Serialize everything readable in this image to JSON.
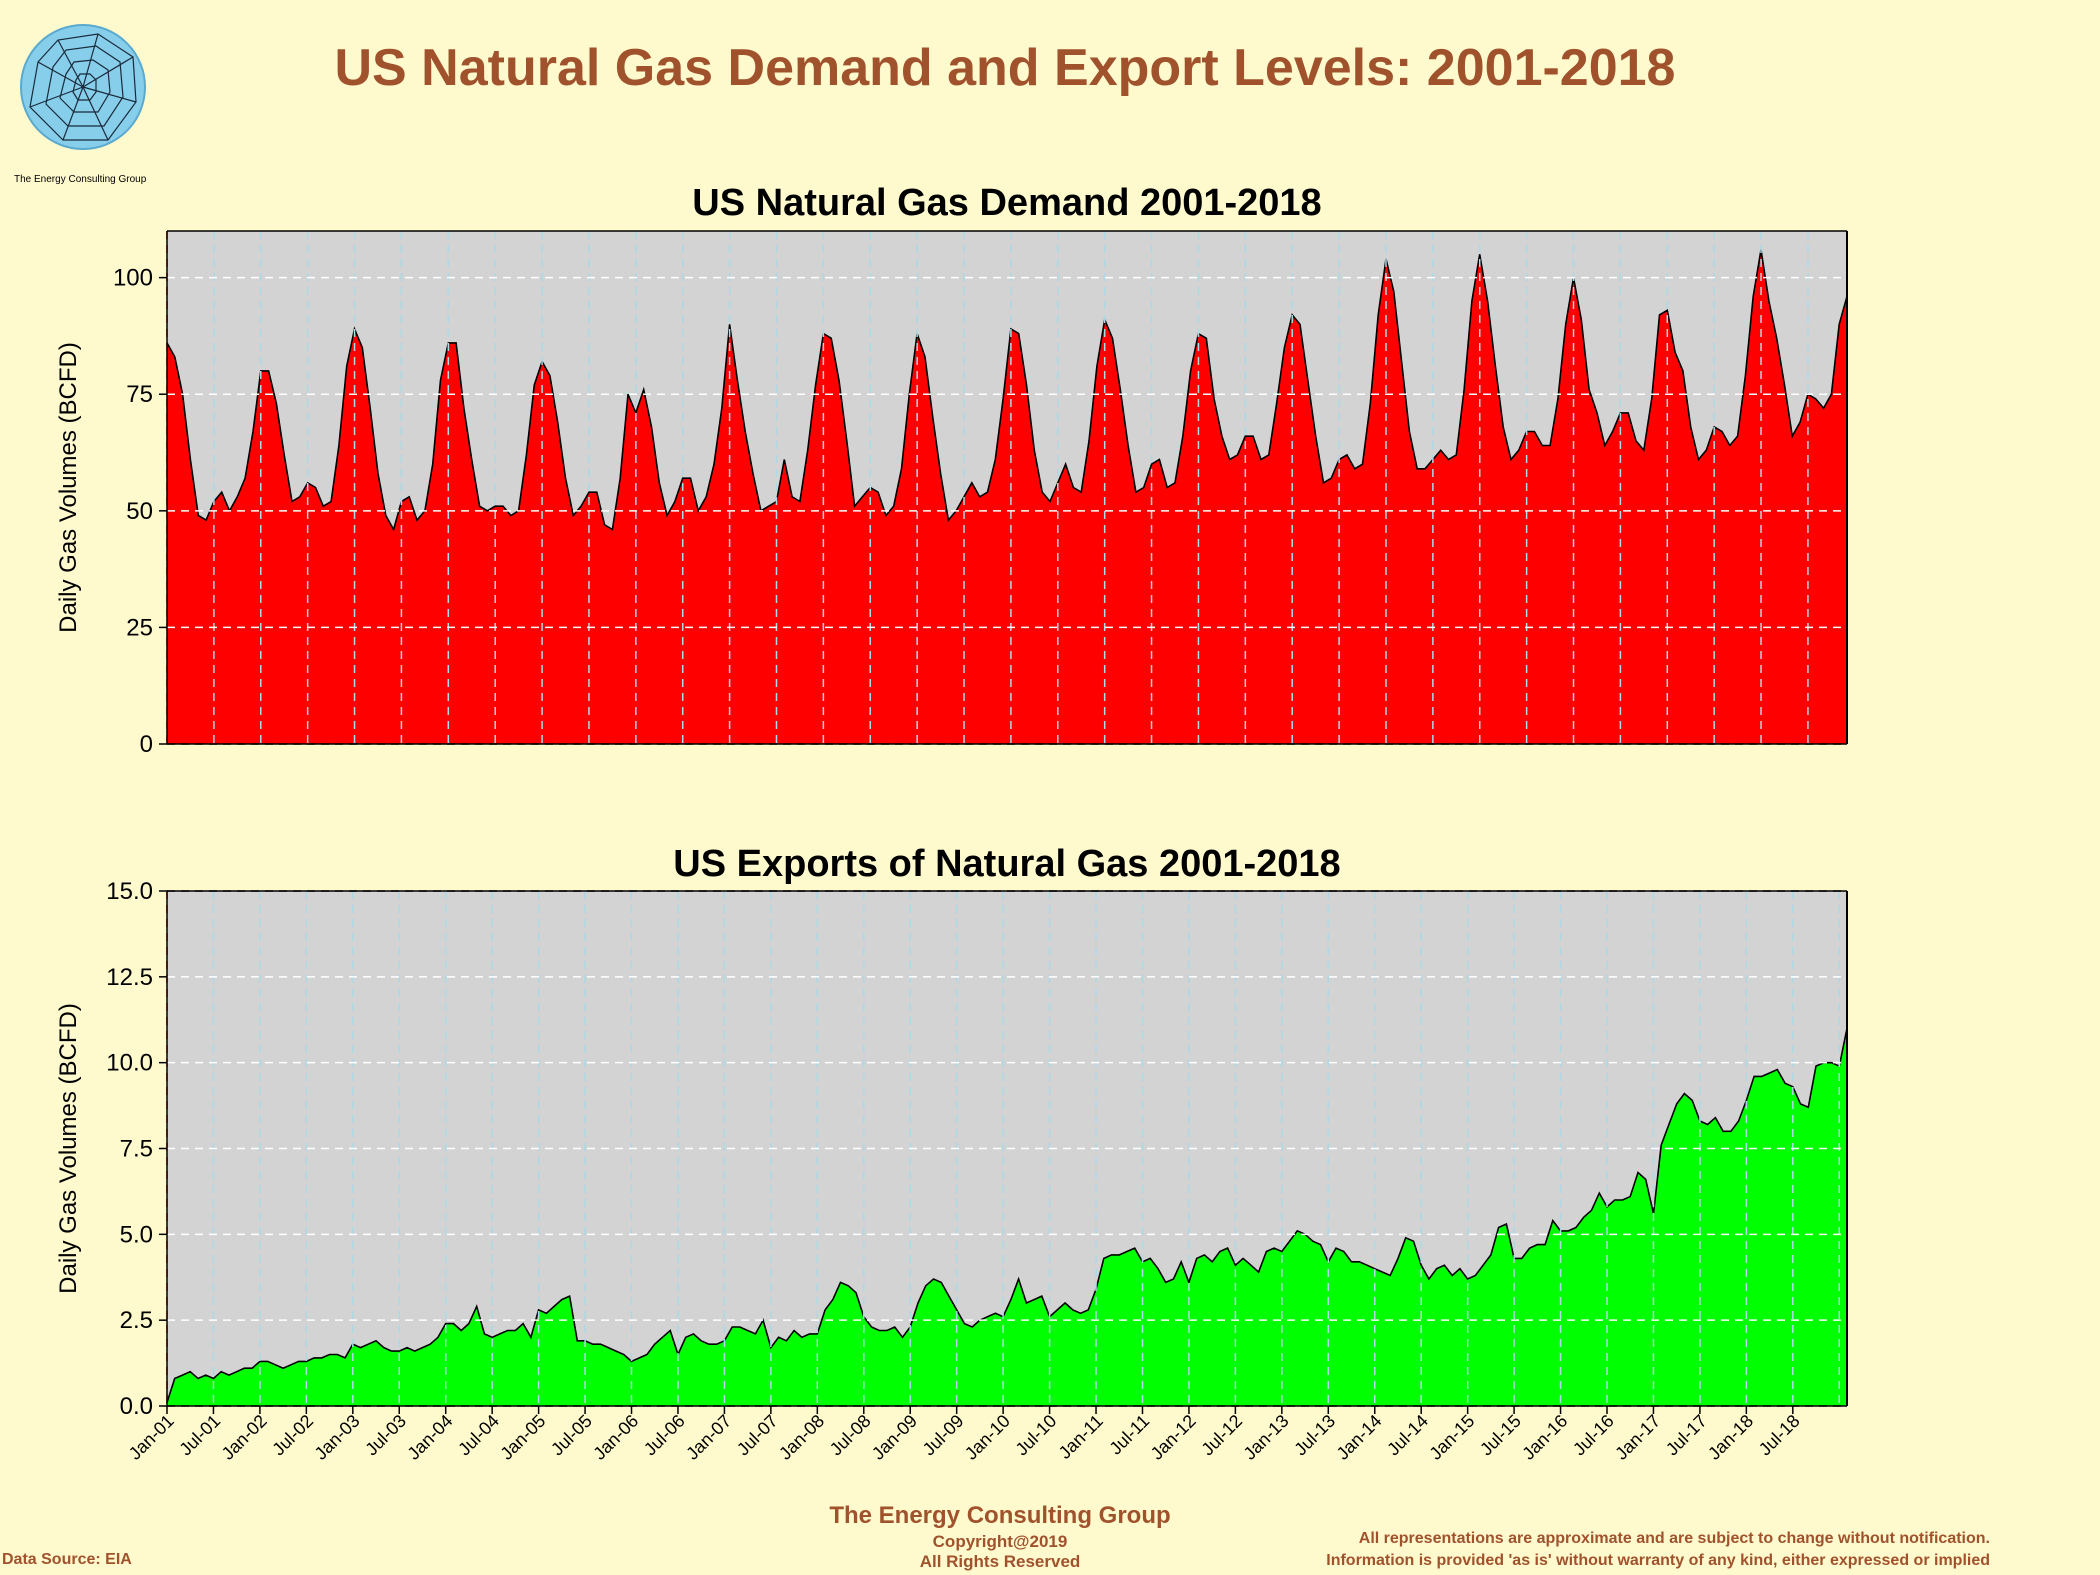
{
  "page": {
    "title": "US Natural Gas Demand and Export Levels: 2001-2018",
    "logo_text": "The Energy Consulting Group",
    "footer_company": "The Energy Consulting Group",
    "footer_copyright": "Copyright@2019",
    "footer_rights": "All Rights Reserved",
    "data_source": "Data Source: EIA",
    "disclaimer_1": "All representations are approximate and are subject to change without notification.",
    "disclaimer_2": "Information is provided 'as is' without warranty of any kind, either expressed or implied",
    "colors": {
      "title": "#A0522D",
      "background": "#FFFACD",
      "plot_bg": "#D3D3D3",
      "grid": "#ADD8E6"
    }
  },
  "chart_data": [
    {
      "type": "area",
      "title": "US Natural Gas Demand 2001-2018",
      "ylabel": "Daily Gas Volumes (BCFD)",
      "xlabel": "",
      "ylim": [
        0,
        110
      ],
      "yticks": [
        "0",
        "25",
        "50",
        "75",
        "100"
      ],
      "ytick_values": [
        0,
        25,
        50,
        75,
        100
      ],
      "x_start": "Jan-01",
      "x_end": "Dec-18",
      "frequency": "monthly",
      "fill_color": "#FF0000",
      "grid": true,
      "values": [
        86,
        83,
        75,
        61,
        49,
        48,
        52,
        54,
        50,
        53,
        57,
        67,
        80,
        80,
        73,
        62,
        52,
        53,
        56,
        55,
        51,
        52,
        64,
        81,
        89,
        85,
        72,
        58,
        49,
        46,
        52,
        53,
        48,
        50,
        60,
        78,
        86,
        86,
        72,
        61,
        51,
        50,
        51,
        51,
        49,
        50,
        62,
        77,
        82,
        79,
        69,
        57,
        49,
        51,
        54,
        54,
        47,
        46,
        57,
        75,
        71,
        76,
        68,
        56,
        49,
        52,
        57,
        57,
        50,
        53,
        60,
        72,
        90,
        78,
        67,
        58,
        50,
        51,
        52,
        61,
        53,
        52,
        63,
        77,
        88,
        87,
        78,
        65,
        51,
        53,
        55,
        54,
        49,
        51,
        59,
        75,
        88,
        83,
        70,
        58,
        48,
        50,
        53,
        56,
        53,
        54,
        61,
        74,
        89,
        88,
        77,
        63,
        54,
        52,
        56,
        60,
        55,
        54,
        65,
        81,
        91,
        87,
        76,
        64,
        54,
        55,
        60,
        61,
        55,
        56,
        66,
        80,
        88,
        87,
        74,
        66,
        61,
        62,
        66,
        66,
        61,
        62,
        73,
        85,
        92,
        90,
        78,
        66,
        56,
        57,
        61,
        62,
        59,
        60,
        73,
        92,
        104,
        97,
        82,
        67,
        59,
        59,
        61,
        63,
        61,
        62,
        76,
        95,
        105,
        95,
        81,
        68,
        61,
        63,
        67,
        67,
        64,
        64,
        74,
        90,
        100,
        91,
        76,
        71,
        64,
        67,
        71,
        71,
        65,
        63,
        74,
        92,
        93,
        84,
        80,
        68,
        61,
        63,
        68,
        67,
        64,
        66,
        79,
        96,
        106,
        95,
        87,
        77,
        66,
        69,
        75,
        74,
        72,
        75,
        90,
        96
      ]
    },
    {
      "type": "area",
      "title": "US Exports of Natural Gas 2001-2018",
      "ylabel": "Daily Gas Volumes (BCFD)",
      "xlabel": "",
      "ylim": [
        0,
        15
      ],
      "yticks": [
        "0.0",
        "2.5",
        "5.0",
        "7.5",
        "10.0",
        "12.5",
        "15.0"
      ],
      "ytick_values": [
        0,
        2.5,
        5,
        7.5,
        10,
        12.5,
        15
      ],
      "fill_color": "#00FF00",
      "grid": true,
      "xticks": [
        "Jan-01",
        "Jul-01",
        "Jan-02",
        "Jul-02",
        "Jan-03",
        "Jul-03",
        "Jan-04",
        "Jul-04",
        "Jan-05",
        "Jul-05",
        "Jan-06",
        "Jul-06",
        "Jan-07",
        "Jul-07",
        "Jan-08",
        "Jul-08",
        "Jan-09",
        "Jul-09",
        "Jan-10",
        "Jul-10",
        "Jan-11",
        "Jul-11",
        "Jan-12",
        "Jul-12",
        "Jan-13",
        "Jul-13",
        "Jan-14",
        "Jul-14",
        "Jan-15",
        "Jul-15",
        "Jan-16",
        "Jul-16",
        "Jan-17",
        "Jul-17",
        "Jan-18",
        "Jul-18"
      ],
      "values": [
        0.1,
        0.8,
        0.9,
        1.0,
        0.8,
        0.9,
        0.8,
        1.0,
        0.9,
        1.0,
        1.1,
        1.1,
        1.3,
        1.3,
        1.2,
        1.1,
        1.2,
        1.3,
        1.3,
        1.4,
        1.4,
        1.5,
        1.5,
        1.4,
        1.8,
        1.7,
        1.8,
        1.9,
        1.7,
        1.6,
        1.6,
        1.7,
        1.6,
        1.7,
        1.8,
        2.0,
        2.4,
        2.4,
        2.2,
        2.4,
        2.9,
        2.1,
        2.0,
        2.1,
        2.2,
        2.2,
        2.4,
        2.0,
        2.8,
        2.7,
        2.9,
        3.1,
        3.2,
        1.9,
        1.9,
        1.8,
        1.8,
        1.7,
        1.6,
        1.5,
        1.3,
        1.4,
        1.5,
        1.8,
        2.0,
        2.2,
        1.5,
        2.0,
        2.1,
        1.9,
        1.8,
        1.8,
        1.9,
        2.3,
        2.3,
        2.2,
        2.1,
        2.5,
        1.7,
        2.0,
        1.9,
        2.2,
        2.0,
        2.1,
        2.1,
        2.8,
        3.1,
        3.6,
        3.5,
        3.3,
        2.6,
        2.3,
        2.2,
        2.2,
        2.3,
        2.0,
        2.3,
        3.0,
        3.5,
        3.7,
        3.6,
        3.2,
        2.8,
        2.4,
        2.3,
        2.5,
        2.6,
        2.7,
        2.6,
        3.1,
        3.7,
        3.0,
        3.1,
        3.2,
        2.6,
        2.8,
        3.0,
        2.8,
        2.7,
        2.8,
        3.4,
        4.3,
        4.4,
        4.4,
        4.5,
        4.6,
        4.2,
        4.3,
        4.0,
        3.6,
        3.7,
        4.2,
        3.6,
        4.3,
        4.4,
        4.2,
        4.5,
        4.6,
        4.1,
        4.3,
        4.1,
        3.9,
        4.5,
        4.6,
        4.5,
        4.8,
        5.1,
        5.0,
        4.8,
        4.7,
        4.2,
        4.6,
        4.5,
        4.2,
        4.2,
        4.1,
        4.0,
        3.9,
        3.8,
        4.3,
        4.9,
        4.8,
        4.1,
        3.7,
        4.0,
        4.1,
        3.8,
        4.0,
        3.7,
        3.8,
        4.1,
        4.4,
        5.2,
        5.3,
        4.3,
        4.3,
        4.6,
        4.7,
        4.7,
        5.4,
        5.1,
        5.1,
        5.2,
        5.5,
        5.7,
        6.2,
        5.8,
        6.0,
        6.0,
        6.1,
        6.8,
        6.6,
        5.6,
        7.6,
        8.2,
        8.8,
        9.1,
        8.9,
        8.3,
        8.2,
        8.4,
        8.0,
        8.0,
        8.3,
        8.9,
        9.6,
        9.6,
        9.7,
        9.8,
        9.4,
        9.3,
        8.8,
        8.7,
        9.9,
        10.0,
        10.0,
        9.9,
        11.0
      ]
    }
  ]
}
